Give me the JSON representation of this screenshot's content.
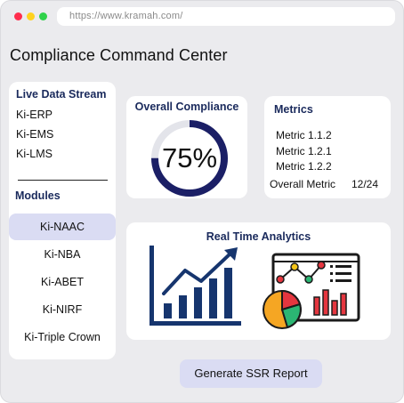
{
  "browser": {
    "url": "https://www.kramah.com/"
  },
  "page": {
    "title": "Compliance Command Center"
  },
  "sidebar": {
    "stream_heading": "Live Data Stream",
    "streams": [
      "Ki-ERP",
      "Ki-EMS",
      "Ki-LMS"
    ],
    "modules_heading": "Modules",
    "modules": [
      "Ki-NAAC",
      "Ki-NBA",
      "Ki-ABET",
      "Ki-NIRF",
      "Ki-Triple Crown"
    ],
    "active_module": "Ki-NAAC"
  },
  "compliance": {
    "title": "Overall Compliance",
    "value_text": "75%",
    "fraction": 0.75
  },
  "metrics": {
    "title": "Metrics",
    "items": [
      "Metric 1.1.2",
      "Metric 1.2.1",
      "Metric 1.2.2"
    ],
    "overall_label": "Overall Metric",
    "overall_value": "12/24"
  },
  "analytics": {
    "title": "Real Time Analytics",
    "icons": [
      "growth-bar-chart-icon",
      "dashboard-analytics-icon"
    ]
  },
  "actions": {
    "generate_label": "Generate SSR Report"
  },
  "colors": {
    "accent_navy": "#1a2a5c",
    "active_bg": "#dadcf3",
    "window_bg": "#ebebee"
  }
}
